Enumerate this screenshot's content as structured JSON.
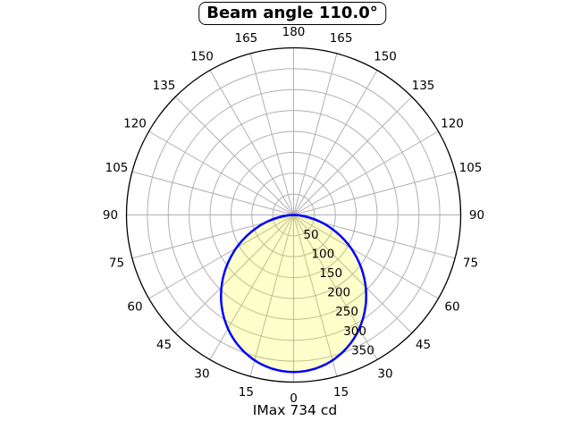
{
  "title": "Beam angle 110.0°",
  "caption": "IMax 734 cd",
  "chart_data": {
    "type": "polar",
    "title": "Beam angle 110.0°",
    "caption": "IMax 734 cd",
    "beam_angle_deg": 110.0,
    "i_max_cd": 734,
    "orientation": {
      "zero_at": "bottom",
      "mirrored_angle_labels": true
    },
    "angle_ticks_deg": [
      0,
      15,
      30,
      45,
      60,
      75,
      90,
      105,
      120,
      135,
      150,
      165,
      180
    ],
    "angle_grid_step_deg": 15,
    "radial_ticks": [
      50,
      100,
      150,
      200,
      250,
      300,
      350
    ],
    "r_axis_max": 400,
    "radial_label_angle_deg": 22.5,
    "grid": "on",
    "curve": {
      "model": "r = r0 * cos(theta)^n",
      "r0": 376,
      "n": 1.2465,
      "series": [
        {
          "theta_deg": -90,
          "r": 0
        },
        {
          "theta_deg": -75,
          "r": 70
        },
        {
          "theta_deg": -60,
          "r": 158
        },
        {
          "theta_deg": -45,
          "r": 244
        },
        {
          "theta_deg": -30,
          "r": 314
        },
        {
          "theta_deg": -15,
          "r": 360
        },
        {
          "theta_deg": 0,
          "r": 376
        },
        {
          "theta_deg": 15,
          "r": 360
        },
        {
          "theta_deg": 30,
          "r": 314
        },
        {
          "theta_deg": 45,
          "r": 244
        },
        {
          "theta_deg": 60,
          "r": 158
        },
        {
          "theta_deg": 75,
          "r": 70
        },
        {
          "theta_deg": 90,
          "r": 0
        }
      ]
    },
    "colors": {
      "curve": "#0000ff",
      "fill": "rgba(255,255,0,0.2)",
      "grid": "#b0b0b0",
      "outer_ring": "#000000",
      "text": "#000000",
      "background": "#ffffff"
    }
  }
}
